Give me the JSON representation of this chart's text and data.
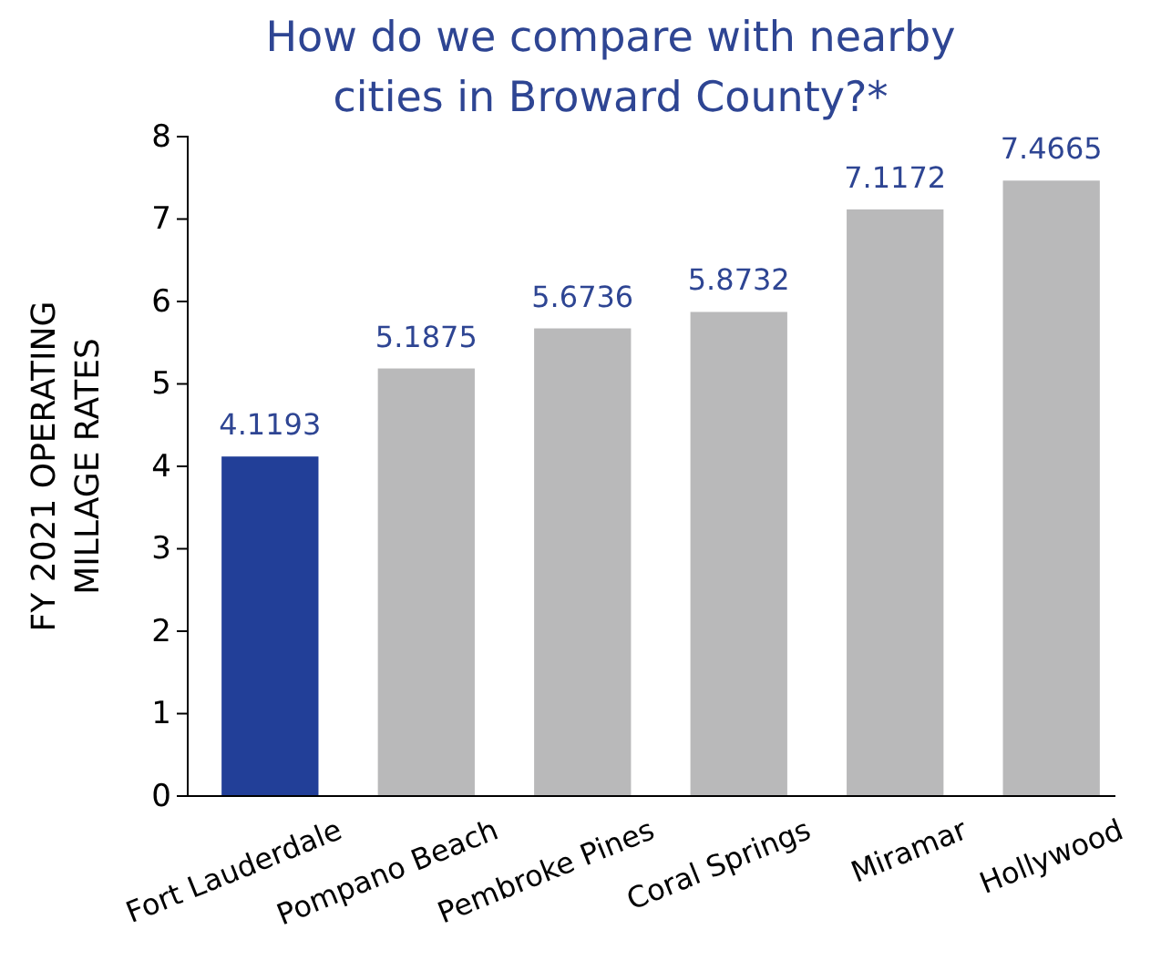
{
  "chart_data": {
    "type": "bar",
    "title": "How do we compare with nearby cities in Broward County?*",
    "ylabel": "FY 2021 OPERATING MILLAGE RATES",
    "categories": [
      "Fort Lauderdale",
      "Pompano Beach",
      "Pembroke Pines",
      "Coral Springs",
      "Miramar",
      "Hollywood"
    ],
    "values": [
      4.1193,
      5.1875,
      5.6736,
      5.8732,
      7.1172,
      7.4665
    ],
    "colors": [
      "#223f98",
      "#b9b9ba",
      "#b9b9ba",
      "#b9b9ba",
      "#b9b9ba",
      "#b9b9ba"
    ],
    "ylim": [
      0,
      8
    ],
    "yticks": [
      0,
      1,
      2,
      3,
      4,
      5,
      6,
      7,
      8
    ],
    "data_labels": true
  }
}
